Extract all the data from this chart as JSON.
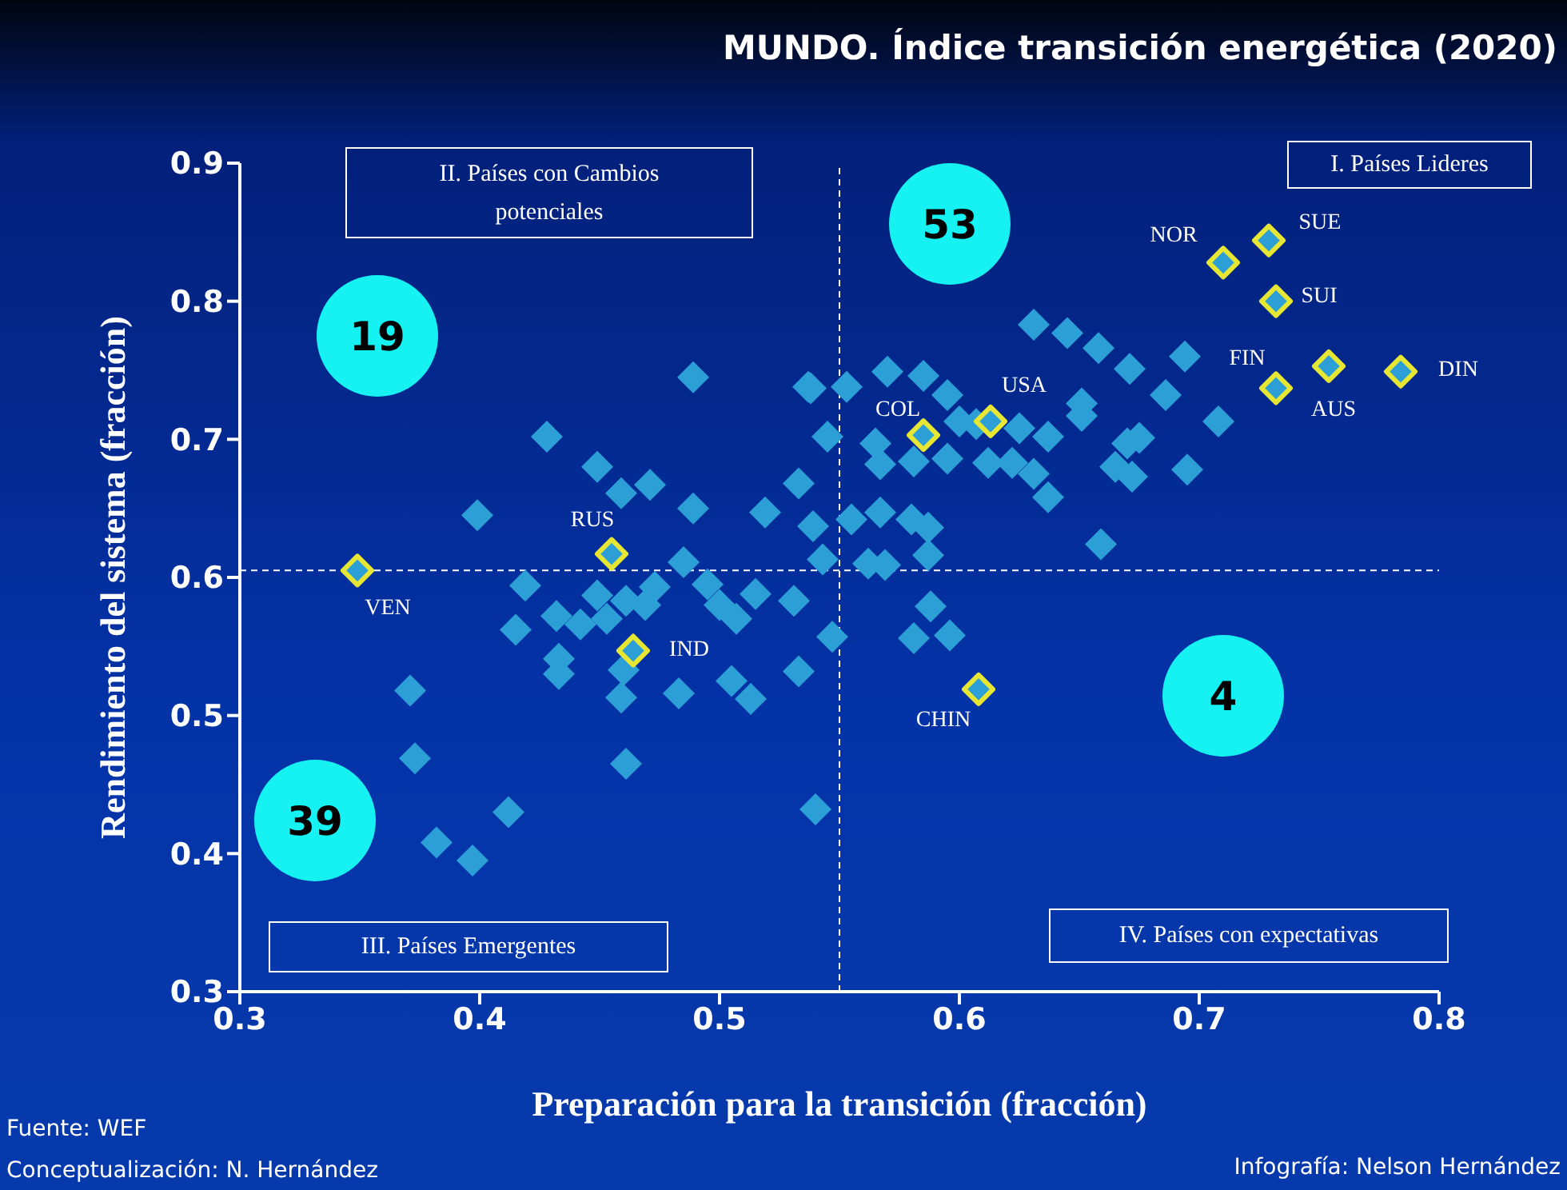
{
  "chart_data": {
    "type": "scatter",
    "title": "MUNDO. Índice transición energética (2020)",
    "xlabel": "Preparación para la transición (fracción)",
    "ylabel": "Rendimiento del sistema (fracción)",
    "xlim": [
      0.3,
      0.8
    ],
    "xticks": [
      0.3,
      0.4,
      0.5,
      0.6,
      0.7,
      0.8
    ],
    "ylim": [
      0.3,
      0.9
    ],
    "yticks": [
      0.3,
      0.4,
      0.5,
      0.6,
      0.7,
      0.8,
      0.9
    ],
    "marker": "diamond",
    "series": [
      {
        "color": "#2b9fd6",
        "x": [
          0.399,
          0.428,
          0.449,
          0.459,
          0.471,
          0.489,
          0.489,
          0.537,
          0.545,
          0.533,
          0.519,
          0.539,
          0.485,
          0.543,
          0.419,
          0.449,
          0.461,
          0.473,
          0.495,
          0.515,
          0.531,
          0.415,
          0.432,
          0.442,
          0.453,
          0.469,
          0.5,
          0.507,
          0.547,
          0.433,
          0.433,
          0.46,
          0.459,
          0.483,
          0.505,
          0.513,
          0.533,
          0.371,
          0.373,
          0.461,
          0.412,
          0.382,
          0.397,
          0.54,
          0.538,
          0.553,
          0.57,
          0.585,
          0.595,
          0.631,
          0.645,
          0.658,
          0.671,
          0.694,
          0.686,
          0.651,
          0.708,
          0.565,
          0.6,
          0.607,
          0.625,
          0.637,
          0.651,
          0.567,
          0.581,
          0.595,
          0.612,
          0.622,
          0.631,
          0.637,
          0.665,
          0.672,
          0.675,
          0.67,
          0.695,
          0.567,
          0.555,
          0.58,
          0.587,
          0.587,
          0.562,
          0.569,
          0.659,
          0.588,
          0.581,
          0.596
        ],
        "values": [
          0.645,
          0.702,
          0.68,
          0.661,
          0.667,
          0.65,
          0.745,
          0.738,
          0.702,
          0.668,
          0.647,
          0.637,
          0.611,
          0.613,
          0.594,
          0.587,
          0.583,
          0.593,
          0.595,
          0.588,
          0.583,
          0.562,
          0.572,
          0.566,
          0.57,
          0.58,
          0.58,
          0.57,
          0.557,
          0.541,
          0.53,
          0.533,
          0.513,
          0.516,
          0.525,
          0.512,
          0.532,
          0.518,
          0.469,
          0.465,
          0.43,
          0.408,
          0.395,
          0.432,
          0.737,
          0.738,
          0.749,
          0.746,
          0.732,
          0.783,
          0.777,
          0.766,
          0.751,
          0.76,
          0.732,
          0.726,
          0.713,
          0.697,
          0.713,
          0.711,
          0.708,
          0.702,
          0.717,
          0.682,
          0.684,
          0.686,
          0.683,
          0.683,
          0.675,
          0.658,
          0.68,
          0.673,
          0.701,
          0.697,
          0.678,
          0.647,
          0.642,
          0.642,
          0.636,
          0.616,
          0.61,
          0.609,
          0.624,
          0.579,
          0.556,
          0.558
        ]
      },
      {
        "color": "#e6e633",
        "x": [
          0.349,
          0.455,
          0.464,
          0.585,
          0.613,
          0.608,
          0.71,
          0.729,
          0.732,
          0.732,
          0.754,
          0.784
        ],
        "values": [
          0.605,
          0.617,
          0.547,
          0.703,
          0.713,
          0.519,
          0.828,
          0.844,
          0.8,
          0.737,
          0.753,
          0.749
        ]
      }
    ],
    "ref_lines": [
      {
        "axis": "x",
        "value": 0.55,
        "color": "#ffffff",
        "line_style": "dashed"
      },
      {
        "axis": "y",
        "value": 0.605,
        "color": "#ffffff",
        "line_style": "dashed"
      }
    ],
    "annotations": [
      "II. Países con Cambios potenciales",
      "I. Países Lideres",
      "III. Países Emergentes",
      "IV. Países con expectativas",
      "19",
      "53",
      "39",
      "4",
      {
        "text": "VEN",
        "x": 0.349,
        "y": 0.605
      },
      {
        "text": "RUS",
        "x": 0.455,
        "y": 0.617
      },
      {
        "text": "IND",
        "x": 0.464,
        "y": 0.547
      },
      {
        "text": "COL",
        "x": 0.585,
        "y": 0.703
      },
      {
        "text": "USA",
        "x": 0.613,
        "y": 0.713
      },
      {
        "text": "CHIN",
        "x": 0.608,
        "y": 0.519
      },
      {
        "text": "NOR",
        "x": 0.71,
        "y": 0.828
      },
      {
        "text": "SUE",
        "x": 0.729,
        "y": 0.844
      },
      {
        "text": "SUI",
        "x": 0.732,
        "y": 0.8
      },
      {
        "text": "FIN",
        "x": 0.732,
        "y": 0.737
      },
      {
        "text": "AUS",
        "x": 0.754,
        "y": 0.753
      },
      {
        "text": "DIN",
        "x": 0.784,
        "y": 0.749
      },
      "Fuente: WEF",
      "Conceptualización: N. Hernández",
      "Infografía: Nelson Hernández"
    ]
  }
}
